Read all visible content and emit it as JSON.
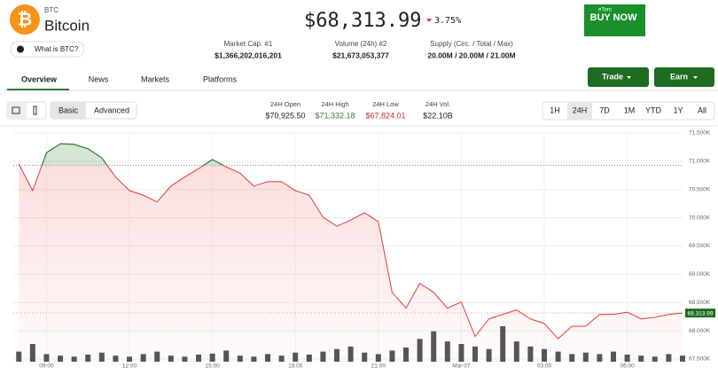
{
  "header": {
    "symbol": "BTC",
    "name": "Bitcoin",
    "what_is": "What is BTC?",
    "price": "$68,313.99",
    "change": "3.75%"
  },
  "ad": {
    "brand": "eToro",
    "cta": "BUY NOW"
  },
  "stats": [
    {
      "label": "Market Cap. #1",
      "value": "$1,366,202,016,201"
    },
    {
      "label": "Volume (24h) #2",
      "value": "$21,673,053,377"
    },
    {
      "label": "Supply (Circ. / Total / Max)",
      "value": "20.00M / 20.00M / 21.00M"
    }
  ],
  "tabs": [
    "Overview",
    "News",
    "Markets",
    "Platforms"
  ],
  "actions": [
    "Trade",
    "Earn"
  ],
  "chart_modes": [
    "Basic",
    "Advanced"
  ],
  "day_stats": [
    {
      "label": "24H Open",
      "value": "$70,925.50"
    },
    {
      "label": "24H High",
      "value": "$71,332.18"
    },
    {
      "label": "24H Low",
      "value": "$67,824.01"
    },
    {
      "label": "24H Vol.",
      "value": "$22.10B"
    }
  ],
  "ranges": [
    "1H",
    "24H",
    "7D",
    "1M",
    "YTD",
    "1Y",
    "All"
  ],
  "chart": {
    "type": "line",
    "x": [
      8,
      8.5,
      9,
      9.5,
      10,
      10.5,
      11,
      11.5,
      12,
      12.5,
      13,
      13.5,
      14,
      14.5,
      15,
      15.5,
      16,
      16.5,
      17,
      17.5,
      18,
      18.5,
      19,
      19.5,
      20,
      20.5,
      21,
      21.5,
      22,
      22.5,
      23,
      23.5,
      24,
      24.5,
      25,
      25.5,
      26,
      26.5,
      27,
      27.5,
      28,
      28.5,
      29,
      29.5,
      30,
      30.5,
      31,
      31.5,
      32
    ],
    "values": [
      70950,
      70480,
      71150,
      71310,
      71300,
      71220,
      71060,
      70720,
      70480,
      70400,
      70280,
      70560,
      70720,
      70870,
      71030,
      70900,
      70790,
      70560,
      70640,
      70640,
      70480,
      70400,
      70010,
      69850,
      69960,
      70090,
      69930,
      68680,
      68400,
      68840,
      68680,
      68400,
      68510,
      67900,
      68210,
      68290,
      68370,
      68210,
      68130,
      67860,
      68080,
      68080,
      68290,
      68290,
      68330,
      68210,
      68240,
      68290,
      68314
    ],
    "volume": [
      20,
      35,
      15,
      12,
      10,
      14,
      18,
      12,
      10,
      15,
      20,
      12,
      10,
      14,
      16,
      22,
      12,
      10,
      15,
      12,
      18,
      14,
      20,
      25,
      30,
      18,
      15,
      22,
      28,
      45,
      60,
      40,
      35,
      30,
      25,
      70,
      40,
      30,
      25,
      20,
      15,
      18,
      15,
      20,
      14,
      12,
      10,
      15,
      12
    ],
    "xlim": [
      7.8,
      32
    ],
    "xticks": [
      {
        "value": 9,
        "label": "09:00"
      },
      {
        "value": 12,
        "label": "12:00"
      },
      {
        "value": 15,
        "label": "15:00"
      },
      {
        "value": 18,
        "label": "18:00"
      },
      {
        "value": 21,
        "label": "21:00"
      },
      {
        "value": 24,
        "label": "Mar 07"
      },
      {
        "value": 27,
        "label": "03:00"
      },
      {
        "value": 30,
        "label": "06:00"
      }
    ],
    "ylim": [
      67500,
      71500
    ],
    "yticks": [
      {
        "value": 67500,
        "label": "67.500K"
      },
      {
        "value": 68000,
        "label": "68.000K"
      },
      {
        "value": 68500,
        "label": "68.500K"
      },
      {
        "value": 69000,
        "label": "69.000K"
      },
      {
        "value": 69500,
        "label": "69.500K"
      },
      {
        "value": 70000,
        "label": "70.000K"
      },
      {
        "value": 70500,
        "label": "70.500K"
      },
      {
        "value": 71000,
        "label": "71.000K"
      },
      {
        "value": 71500,
        "label": "71.500K"
      }
    ],
    "baseline": 70925.5,
    "last_price": {
      "value": 68313.99,
      "label": "68,313.99"
    },
    "up_color": "#2e7d32",
    "down_color": "#e53935",
    "volume_color": "#555555",
    "grid": true
  }
}
